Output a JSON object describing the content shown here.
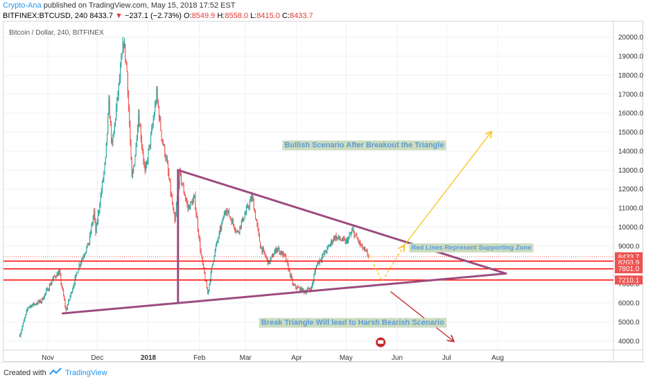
{
  "header": {
    "author": "Crypto-Ana",
    "published": "published on TradingView.com, May 15, 2018 17:52 EST",
    "symbol": "BITFINEX:BTCUSD, 240",
    "last": "8433.7",
    "change_arrow": "▼",
    "change": "−237.1 (−2.73%)",
    "open_label": "O:",
    "open": "8549.9",
    "high_label": "H:",
    "high": "8558.0",
    "low_label": "L:",
    "low": "8415.0",
    "close_label": "C:",
    "close": "8433.7"
  },
  "chart_title": "Bitcoin / Dollar, 240, BITFINEX",
  "footer": {
    "created": "Created with",
    "brand": "TradingView"
  },
  "chart_data": {
    "type": "candlestick",
    "y_ticks": [
      4000,
      5000,
      6000,
      7000,
      8000,
      9000,
      10000,
      11000,
      12000,
      13000,
      14000,
      15000,
      16000,
      17000,
      18000,
      19000,
      20000
    ],
    "y_tick_labels": [
      "4000.0",
      "5000.0",
      "6000.0",
      "7000.0",
      "8000.0",
      "9000.0",
      "10000.0",
      "11000.0",
      "12000.0",
      "13000.0",
      "14000.0",
      "15000.0",
      "16000.0",
      "17000.0",
      "18000.0",
      "19000.0",
      "20000.0"
    ],
    "x_ticks": [
      {
        "label": "Nov",
        "date": "2017-11-01"
      },
      {
        "label": "Dec",
        "date": "2017-12-01"
      },
      {
        "label": "2018",
        "date": "2018-01-01"
      },
      {
        "label": "Feb",
        "date": "2018-02-01"
      },
      {
        "label": "Mar",
        "date": "2018-03-01"
      },
      {
        "label": "Apr",
        "date": "2018-04-01"
      },
      {
        "label": "May",
        "date": "2018-05-01"
      },
      {
        "label": "Jun",
        "date": "2018-06-01"
      },
      {
        "label": "Jul",
        "date": "2018-07-01"
      },
      {
        "label": "Aug",
        "date": "2018-08-01"
      }
    ],
    "price_path": [
      [
        "2017-10-15",
        4300
      ],
      [
        "2017-10-20",
        5800
      ],
      [
        "2017-10-28",
        6100
      ],
      [
        "2017-11-05",
        7400
      ],
      [
        "2017-11-08",
        7600
      ],
      [
        "2017-11-12",
        5600
      ],
      [
        "2017-11-15",
        6500
      ],
      [
        "2017-11-20",
        8000
      ],
      [
        "2017-11-26",
        9200
      ],
      [
        "2017-11-29",
        10800
      ],
      [
        "2017-11-30",
        9700
      ],
      [
        "2017-12-06",
        13500
      ],
      [
        "2017-12-08",
        16500
      ],
      [
        "2017-12-10",
        14200
      ],
      [
        "2017-12-17",
        19800
      ],
      [
        "2017-12-19",
        18200
      ],
      [
        "2017-12-22",
        12500
      ],
      [
        "2017-12-24",
        13800
      ],
      [
        "2017-12-26",
        16000
      ],
      [
        "2017-12-30",
        12800
      ],
      [
        "2018-01-03",
        15000
      ],
      [
        "2018-01-06",
        17000
      ],
      [
        "2018-01-09",
        14800
      ],
      [
        "2018-01-12",
        13500
      ],
      [
        "2018-01-17",
        10200
      ],
      [
        "2018-01-20",
        12800
      ],
      [
        "2018-01-25",
        11000
      ],
      [
        "2018-01-29",
        11500
      ],
      [
        "2018-02-02",
        8500
      ],
      [
        "2018-02-06",
        6500
      ],
      [
        "2018-02-10",
        8600
      ],
      [
        "2018-02-17",
        11000
      ],
      [
        "2018-02-24",
        9700
      ],
      [
        "2018-03-05",
        11600
      ],
      [
        "2018-03-10",
        9000
      ],
      [
        "2018-03-15",
        8100
      ],
      [
        "2018-03-20",
        8900
      ],
      [
        "2018-03-25",
        8400
      ],
      [
        "2018-03-30",
        6900
      ],
      [
        "2018-04-06",
        6600
      ],
      [
        "2018-04-10",
        6800
      ],
      [
        "2018-04-13",
        8000
      ],
      [
        "2018-04-20",
        8900
      ],
      [
        "2018-04-24",
        9500
      ],
      [
        "2018-05-01",
        9200
      ],
      [
        "2018-05-05",
        9800
      ],
      [
        "2018-05-10",
        9000
      ],
      [
        "2018-05-15",
        8433.7
      ]
    ],
    "current_price": 8433.7,
    "support_levels": [
      8203.9,
      7801.0,
      7210.1
    ],
    "price_labels": [
      "8433.7",
      "8203.9",
      "7801.0",
      "7210.1"
    ],
    "triangle": {
      "upper_line": [
        [
          "2018-01-19",
          13000
        ],
        [
          "2018-08-06",
          7550
        ]
      ],
      "lower_line": [
        [
          "2017-11-10",
          5450
        ],
        [
          "2018-08-06",
          7550
        ]
      ],
      "vertical": [
        [
          "2018-01-19",
          13000
        ],
        [
          "2018-01-19",
          6000
        ]
      ]
    },
    "scenario_paths": {
      "bullish": [
        [
          "2018-05-15",
          8500
        ],
        [
          "2018-05-23",
          7150
        ],
        [
          "2018-06-05",
          9000
        ],
        [
          "2018-07-28",
          15000
        ]
      ],
      "bearish": [
        [
          "2018-05-28",
          6600
        ],
        [
          "2018-07-05",
          4000
        ]
      ]
    },
    "annotations": [
      {
        "text": "Bullish Scenario  After Breakout the Triangle",
        "date": "2018-05-12",
        "price": 14300
      },
      {
        "text": "Red Lines Represent Supporting Zone",
        "date": "2018-07-16",
        "price": 8900
      },
      {
        "text": "Break Triangle Will lead to Harsh Bearish Scenario",
        "date": "2018-05-05",
        "price": 4950
      }
    ],
    "colors": {
      "up": "#26a69a",
      "down": "#ef5350",
      "triangle": "#9c4b7f",
      "support": "#ff0000",
      "bullish": "#f5c518",
      "bearish": "#c62828",
      "price_label": "#ef5350",
      "annotation_text": "#5b9bd5",
      "annotation_bg": "#ccdcc0"
    }
  }
}
